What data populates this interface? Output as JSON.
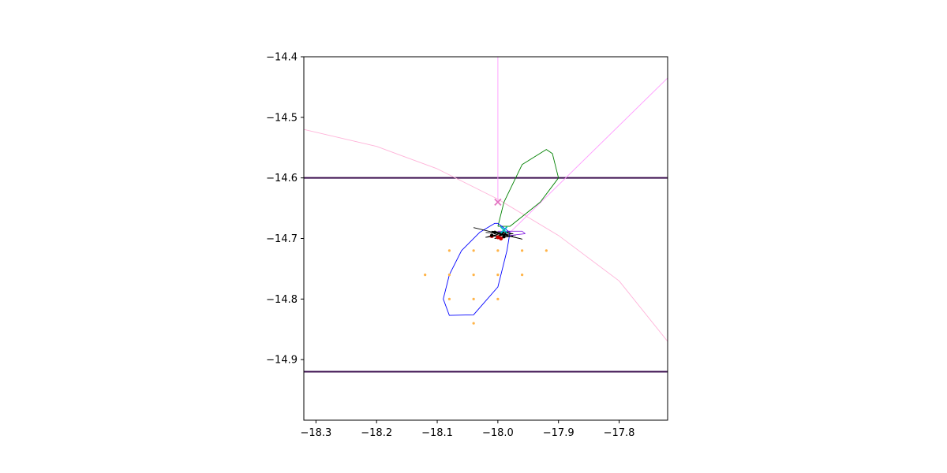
{
  "chart_data": {
    "type": "scatter",
    "title": "",
    "xlabel": "",
    "ylabel": "",
    "xlim": [
      -18.32,
      -17.72
    ],
    "ylim": [
      -15.0,
      -14.4
    ],
    "xticks": [
      {
        "value": -18.3,
        "label": "−18.3"
      },
      {
        "value": -18.2,
        "label": "−18.2"
      },
      {
        "value": -18.1,
        "label": "−18.1"
      },
      {
        "value": -18.0,
        "label": "−18.0"
      },
      {
        "value": -17.9,
        "label": "−17.9"
      },
      {
        "value": -17.8,
        "label": "−17.8"
      }
    ],
    "yticks": [
      {
        "value": -14.4,
        "label": "−14.4"
      },
      {
        "value": -14.5,
        "label": "−14.5"
      },
      {
        "value": -14.6,
        "label": "−14.6"
      },
      {
        "value": -14.7,
        "label": "−14.7"
      },
      {
        "value": -14.8,
        "label": "−14.8"
      },
      {
        "value": -14.9,
        "label": "−14.9"
      }
    ],
    "grid": false,
    "legend": "none",
    "hlines": [
      {
        "y": -14.6,
        "color": "#3b0f4f"
      },
      {
        "y": -14.92,
        "color": "#3b0f4f"
      }
    ],
    "series": [
      {
        "type": "line",
        "color": "#ff99ff",
        "x": [
          -18.0,
          -18.0
        ],
        "y": [
          -14.4,
          -14.64
        ]
      },
      {
        "type": "line",
        "color": "#ff99ff",
        "x": [
          -17.72,
          -17.985
        ],
        "y": [
          -14.435,
          -14.695
        ]
      },
      {
        "type": "line",
        "color": "#ffb3d9",
        "x": [
          -18.32,
          -18.2,
          -18.1,
          -18.0,
          -17.9,
          -17.8,
          -17.72
        ],
        "y": [
          -14.52,
          -14.548,
          -14.585,
          -14.635,
          -14.695,
          -14.77,
          -14.87
        ]
      },
      {
        "type": "line",
        "color": "#008000",
        "x": [
          -18.0,
          -17.99,
          -17.96,
          -17.92,
          -17.91,
          -17.9,
          -17.93,
          -17.98,
          -18.0
        ],
        "y": [
          -14.68,
          -14.64,
          -14.578,
          -14.553,
          -14.56,
          -14.6,
          -14.64,
          -14.68,
          -14.68
        ]
      },
      {
        "type": "line",
        "color": "#0000ff",
        "x": [
          -18.0,
          -17.98,
          -17.985,
          -18.0,
          -18.04,
          -18.08,
          -18.09,
          -18.08,
          -18.06,
          -18.03,
          -18.005,
          -18.0
        ],
        "y": [
          -14.675,
          -14.69,
          -14.72,
          -14.78,
          -14.826,
          -14.827,
          -14.8,
          -14.76,
          -14.72,
          -14.69,
          -14.675,
          -14.675
        ]
      },
      {
        "type": "line",
        "color": "#000000",
        "x": [
          -18.04,
          -17.99,
          -17.96,
          -18.01,
          -17.975,
          -18.02,
          -17.98,
          -18.005,
          -17.97
        ],
        "y": [
          -14.682,
          -14.694,
          -14.701,
          -14.688,
          -14.692,
          -14.698,
          -14.688,
          -14.7,
          -14.694
        ]
      },
      {
        "type": "line",
        "color": "#000000",
        "x": [
          -18.02,
          -17.985,
          -18.01,
          -17.99,
          -18.0,
          -17.975
        ],
        "y": [
          -14.69,
          -14.693,
          -14.697,
          -14.689,
          -14.699,
          -14.696
        ]
      },
      {
        "type": "line",
        "color": "#8a2be2",
        "x": [
          -18.0,
          -17.96,
          -17.955,
          -17.98
        ],
        "y": [
          -14.688,
          -14.688,
          -14.692,
          -14.695
        ]
      },
      {
        "type": "scatter",
        "marker": "dot",
        "size": 1.6,
        "color": "#ffb347",
        "x": [
          -18.08,
          -18.04,
          -18.0,
          -17.96,
          -17.92,
          -18.12,
          -18.08,
          -18.04,
          -18.0,
          -17.96,
          -18.08,
          -18.04,
          -18.0,
          -18.04
        ],
        "y": [
          -14.72,
          -14.72,
          -14.72,
          -14.72,
          -14.72,
          -14.76,
          -14.76,
          -14.76,
          -14.76,
          -14.76,
          -14.8,
          -14.8,
          -14.8,
          -14.84
        ]
      },
      {
        "type": "scatter",
        "marker": "dot",
        "size": 2.5,
        "color": "#cc0000",
        "x": [
          -18.0,
          -17.995,
          -18.01
        ],
        "y": [
          -14.698,
          -14.7,
          -14.696
        ]
      },
      {
        "type": "scatter",
        "marker": "dot",
        "size": 2.2,
        "color": "#000000",
        "x": [
          -18.005,
          -17.995,
          -18.01,
          -17.99
        ],
        "y": [
          -14.69,
          -14.693,
          -14.695,
          -14.697
        ]
      },
      {
        "type": "scatter",
        "marker": "x",
        "size": 4,
        "color": "#e377c2",
        "x": [
          -18.0
        ],
        "y": [
          -14.64
        ]
      },
      {
        "type": "scatter",
        "marker": "x",
        "size": 4,
        "color": "#00bfbf",
        "x": [
          -17.99
        ],
        "y": [
          -14.686
        ]
      }
    ]
  }
}
